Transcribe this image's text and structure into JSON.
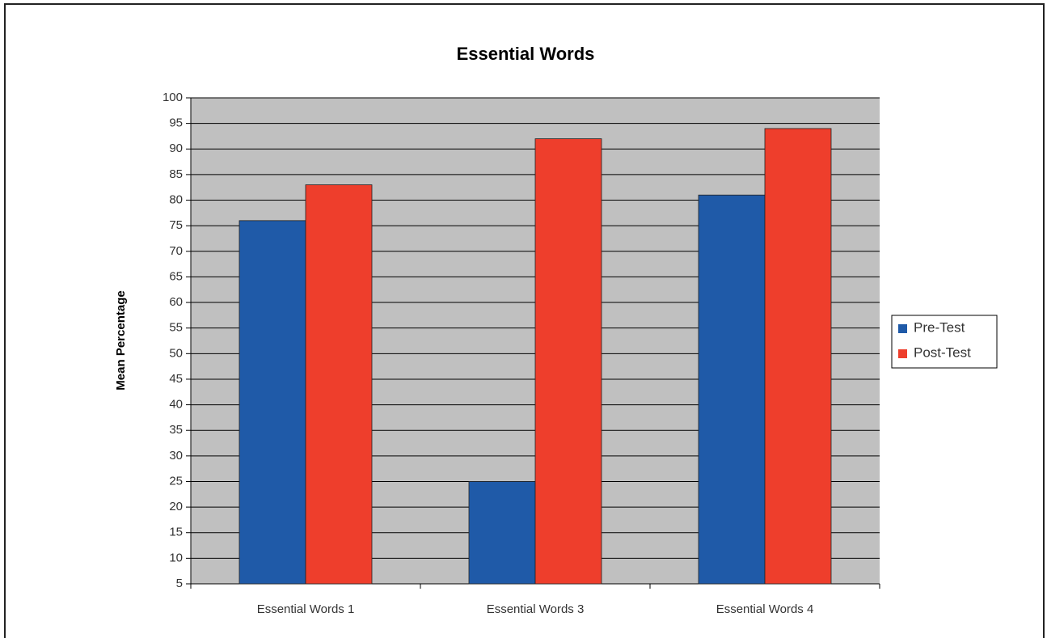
{
  "chart_data": {
    "type": "bar",
    "title": "Essential Words",
    "y_label": "Mean Percentage",
    "categories": [
      "Essential Words 1",
      "Essential Words 3",
      "Essential Words 4"
    ],
    "series": [
      {
        "name": "Pre-Test",
        "color": "#1f5aa8",
        "values": [
          76,
          25,
          81
        ]
      },
      {
        "name": "Post-Test",
        "color": "#ee3e2c",
        "values": [
          83,
          92,
          94
        ]
      }
    ],
    "ylim": [
      5,
      100
    ],
    "yticks": [
      5,
      10,
      15,
      20,
      25,
      30,
      35,
      40,
      45,
      50,
      55,
      60,
      65,
      70,
      75,
      80,
      85,
      90,
      95,
      100
    ],
    "grid": true,
    "legend": "right"
  }
}
